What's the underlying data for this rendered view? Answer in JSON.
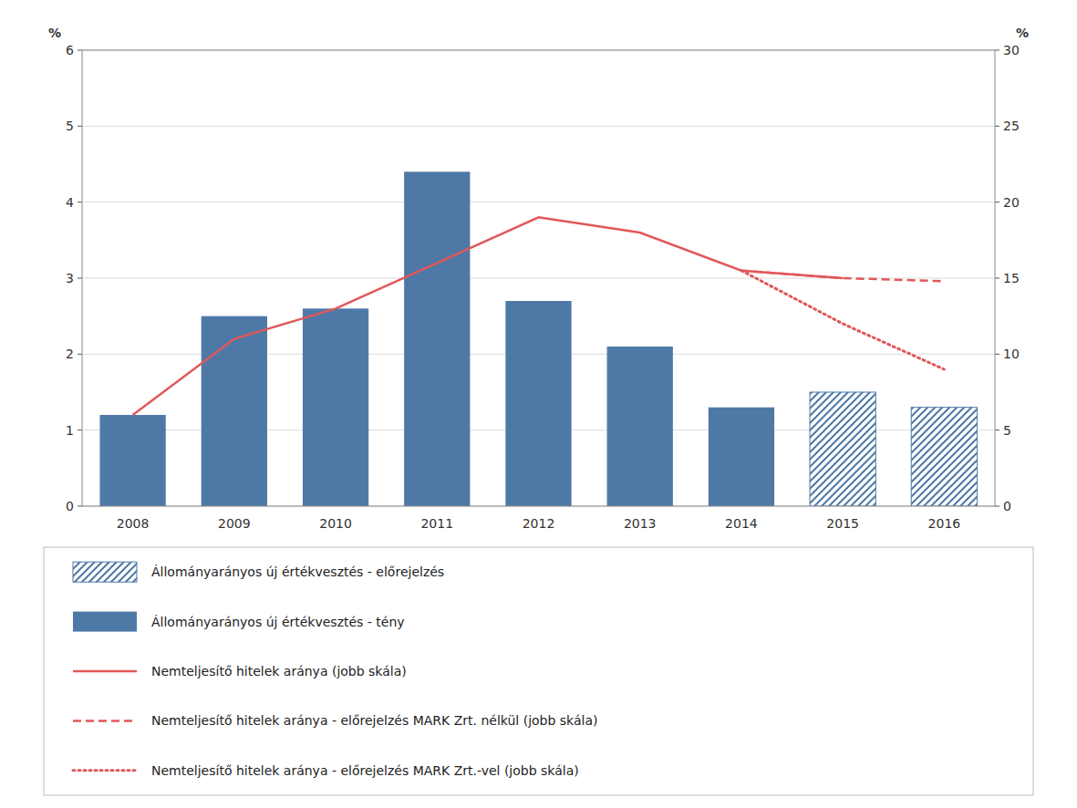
{
  "chart_data": {
    "type": "bar",
    "categories": [
      "2008",
      "2009",
      "2010",
      "2011",
      "2012",
      "2013",
      "2014",
      "2015",
      "2016"
    ],
    "y_label": "%",
    "y2_label": "%",
    "ylim": [
      0,
      6
    ],
    "yticks": [
      0,
      1,
      2,
      3,
      4,
      5,
      6
    ],
    "y2lim": [
      0,
      30
    ],
    "y2ticks": [
      0,
      5,
      10,
      15,
      20,
      25,
      30
    ],
    "grid": true,
    "legend": "bottom",
    "series": [
      {
        "name": "Állományarányos új értékvesztés - előrejelzés",
        "type": "bar",
        "line_style": "hatched",
        "color": "#4e79a7",
        "values": [
          0,
          0,
          0,
          0,
          0,
          0,
          0,
          1.5,
          1.3
        ]
      },
      {
        "name": "Állományarányos új értékvesztés - tény",
        "type": "bar",
        "line_style": "solid",
        "color": "#4e79a7",
        "values": [
          1.2,
          2.5,
          2.6,
          4.4,
          2.7,
          2.1,
          1.3,
          0,
          0
        ]
      },
      {
        "name": "Nemteljesítő hitelek aránya (jobb skála)",
        "type": "line",
        "axis": "y2",
        "line_style": "solid",
        "color": "#e15759",
        "values": [
          6.0,
          11.0,
          13.0,
          16.0,
          19.0,
          18.0,
          15.5,
          15.0,
          null
        ]
      },
      {
        "name": "Nemteljesítő hitelek aránya - előrejelzés MARK Zrt. nélkül (jobb skála)",
        "type": "line",
        "axis": "y2",
        "line_style": "dashed",
        "color": "#e15759",
        "values": [
          null,
          null,
          null,
          null,
          null,
          null,
          15.5,
          15.0,
          14.8
        ]
      },
      {
        "name": "Nemteljesítő hitelek aránya - előrejelzés MARK Zrt.-vel (jobb skála)",
        "type": "line",
        "axis": "y2",
        "line_style": "dotted",
        "color": "#e15759",
        "values": [
          null,
          null,
          null,
          null,
          null,
          null,
          15.5,
          12.0,
          9.0
        ]
      }
    ]
  }
}
